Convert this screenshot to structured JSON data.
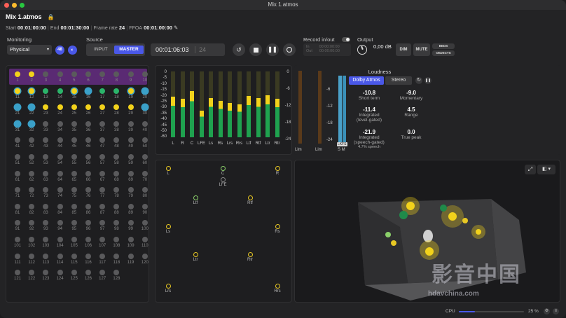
{
  "window": {
    "title": "Mix 1.atmos"
  },
  "header": {
    "mix_name": "Mix 1.atmos",
    "start_label": "Start",
    "start": "00:01:00:00",
    "end_label": "End",
    "end": "00:01:30:00",
    "frame_rate_label": "Frame rate",
    "frame_rate": "24",
    "ffoa_label": "FFOA",
    "ffoa": "00:01:00:00"
  },
  "monitoring": {
    "label": "Monitoring",
    "value": "Physical",
    "badge": "48"
  },
  "source": {
    "label": "Source",
    "input": "INPUT",
    "master": "MASTER"
  },
  "timecode": {
    "value": "00:01:06:03",
    "frames": "24"
  },
  "record": {
    "label": "Record in/out",
    "in_label": "In",
    "in_value": "00:00:00:00",
    "out_label": "Out",
    "out_value": "00:00:00:00"
  },
  "output": {
    "label": "Output",
    "db": "0,00 dB",
    "dim": "DIM",
    "mute": "MUTE",
    "beds": "BEDS",
    "objects": "OBJECTS"
  },
  "channels": [
    "1",
    "2",
    "3",
    "4",
    "5",
    "6",
    "7",
    "8",
    "9",
    "10",
    "11",
    "12",
    "13",
    "14",
    "15",
    "16",
    "17",
    "18",
    "19",
    "20",
    "21",
    "22",
    "23",
    "24",
    "25",
    "26",
    "27",
    "28",
    "29",
    "30",
    "31",
    "32",
    "33",
    "34",
    "35",
    "36",
    "37",
    "38",
    "39",
    "40",
    "41",
    "42",
    "43",
    "44",
    "45",
    "46",
    "47",
    "48",
    "49",
    "50",
    "51",
    "52",
    "53",
    "54",
    "55",
    "56",
    "57",
    "58",
    "59",
    "60",
    "61",
    "62",
    "63",
    "64",
    "65",
    "66",
    "67",
    "68",
    "69",
    "70",
    "71",
    "72",
    "73",
    "74",
    "75",
    "76",
    "77",
    "78",
    "79",
    "80",
    "81",
    "82",
    "83",
    "84",
    "85",
    "86",
    "87",
    "88",
    "89",
    "90",
    "91",
    "92",
    "93",
    "94",
    "95",
    "96",
    "97",
    "98",
    "99",
    "100",
    "101",
    "102",
    "103",
    "104",
    "105",
    "106",
    "107",
    "108",
    "109",
    "110",
    "111",
    "112",
    "113",
    "114",
    "115",
    "116",
    "117",
    "118",
    "119",
    "120",
    "121",
    "122",
    "123",
    "124",
    "125",
    "126",
    "127",
    "128"
  ],
  "meters": {
    "scale": [
      "0",
      "-5",
      "-10",
      "-15",
      "-20",
      "-25",
      "-30",
      "-35",
      "-40",
      "-45",
      "-50",
      "-60"
    ],
    "scale2": [
      "0",
      "-6",
      "-12",
      "-18",
      "-24"
    ],
    "labels": [
      "L",
      "R",
      "C",
      "LFE",
      "Ls",
      "Rs",
      "Lrs",
      "Rrs",
      "Ltf",
      "Rtf",
      "Ltr",
      "Rtr"
    ],
    "levels": [
      0.62,
      0.58,
      0.7,
      0.4,
      0.6,
      0.55,
      0.52,
      0.5,
      0.63,
      0.6,
      0.64,
      0.58
    ],
    "lim1": "Lim",
    "lim2": "Lim",
    "lkfs": "LKFS",
    "s": "S",
    "m": "M"
  },
  "loudness": {
    "title": "Loudness",
    "tab1": "Dolby Atmos",
    "tab2": "Stereo",
    "short_term": "-10.8",
    "short_term_label": "Short term",
    "momentary": "-9.0",
    "momentary_label": "Momentary",
    "integrated_lg": "-11.4",
    "integrated_lg_label1": "Integrated",
    "integrated_lg_label2": "(level-gated)",
    "range": "4.5",
    "range_label": "Range",
    "integrated_sg": "-21.9",
    "integrated_sg_label1": "Integrated",
    "integrated_sg_label2": "(speech-gated)",
    "speech": "4.7% speech",
    "true_peak": "0.0",
    "true_peak_label": "True peak"
  },
  "speakers": [
    "L",
    "C",
    "R",
    "LFE",
    "Ltf",
    "Rtf",
    "Ls",
    "Rs",
    "Ltr",
    "Rtr",
    "Lrs",
    "Rrs"
  ],
  "status": {
    "cpu_label": "CPU",
    "cpu_value": "25 %",
    "cpu_fraction": 0.25
  },
  "watermark": {
    "text": "影音中国",
    "url": "hdavchina.com"
  }
}
